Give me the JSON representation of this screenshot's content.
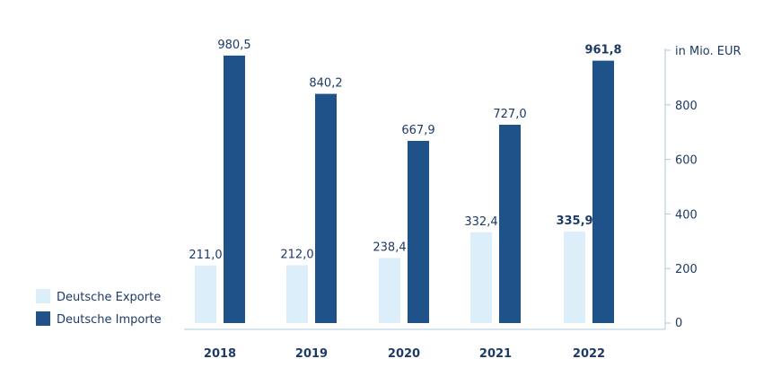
{
  "chart_data": {
    "type": "bar",
    "categories": [
      "2018",
      "2019",
      "2020",
      "2021",
      "2022"
    ],
    "series": [
      {
        "name": "Deutsche Exporte",
        "values": [
          211.0,
          212.0,
          238.4,
          332.4,
          335.9
        ],
        "labels": [
          "211,0",
          "212,0",
          "238,4",
          "332,4",
          "335,9"
        ],
        "color": "#ddeefb"
      },
      {
        "name": "Deutsche Importe",
        "values": [
          980.5,
          840.2,
          667.9,
          727.0,
          961.8
        ],
        "labels": [
          "980,5",
          "840,2",
          "667,9",
          "727,0",
          "961,8"
        ],
        "color": "#1e5288"
      }
    ],
    "y_axis": {
      "position": "right",
      "unit_label": "in Mio. EUR",
      "ticks": [
        0,
        200,
        400,
        600,
        800
      ],
      "tick_labels": [
        "0",
        "200",
        "400",
        "600",
        "800"
      ],
      "ylim": [
        0,
        1000
      ]
    },
    "highlight_category": "2022",
    "legend_position": "bottom-left",
    "grid": false,
    "axis_color": "#a9c9d5",
    "text_color": "#1e3a66"
  }
}
